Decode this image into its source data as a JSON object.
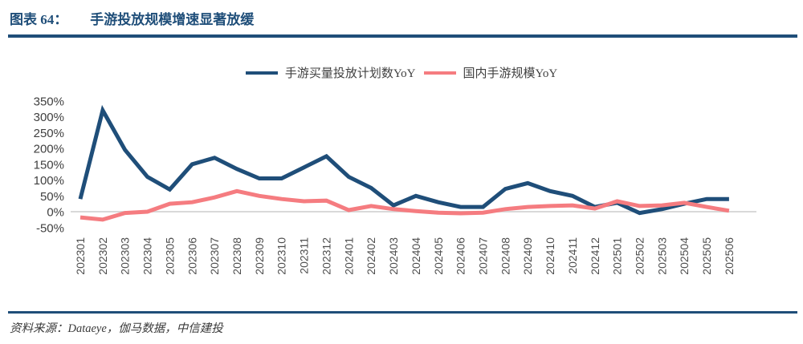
{
  "header": {
    "figure_label": "图表 64：",
    "title": "手游投放规模增速显著放缓"
  },
  "footer": {
    "source_label": "资料来源：",
    "source_text": "Dataeye，伽马数据，中信建投"
  },
  "colors": {
    "accent_navy": "#1F4E79",
    "series_blue": "#1F4E79",
    "series_pink": "#F57C80",
    "gridline_gray": "#D9D9D9",
    "ytick_text": "#3F3F3F",
    "xtick_text": "#4D4D4D"
  },
  "chart_data": {
    "type": "line",
    "title": "手游投放规模增速显著放缓",
    "xlabel": "",
    "ylabel": "",
    "categories": [
      "202301",
      "202302",
      "202303",
      "202304",
      "202305",
      "202306",
      "202307",
      "202308",
      "202309",
      "202310",
      "202311",
      "202312",
      "202401",
      "202402",
      "202403",
      "202404",
      "202405",
      "202406",
      "202407",
      "202408",
      "202409",
      "202410",
      "202411",
      "202412",
      "202501",
      "202502",
      "202503",
      "202504",
      "202505",
      "202506"
    ],
    "series": [
      {
        "name": "手游买量投放计划数YoY",
        "color": "#1F4E79",
        "values": [
          40,
          320,
          195,
          110,
          70,
          150,
          170,
          135,
          105,
          105,
          140,
          175,
          110,
          75,
          20,
          50,
          30,
          15,
          15,
          72,
          90,
          65,
          50,
          15,
          28,
          -4,
          8,
          25,
          40,
          40
        ]
      },
      {
        "name": "国内手游规模YoY",
        "color": "#F57C80",
        "values": [
          -18,
          -25,
          -4,
          0,
          25,
          30,
          45,
          65,
          50,
          40,
          33,
          35,
          5,
          18,
          8,
          2,
          -3,
          -5,
          -3,
          8,
          15,
          18,
          20,
          10,
          33,
          18,
          20,
          28,
          15,
          3
        ]
      }
    ],
    "ylim": [
      -50,
      350
    ],
    "ytick_step": 50,
    "ytick_suffix": "%",
    "grid": "horizontal zero-line only",
    "legend_position": "top-center",
    "xtick_rotation": 90
  }
}
